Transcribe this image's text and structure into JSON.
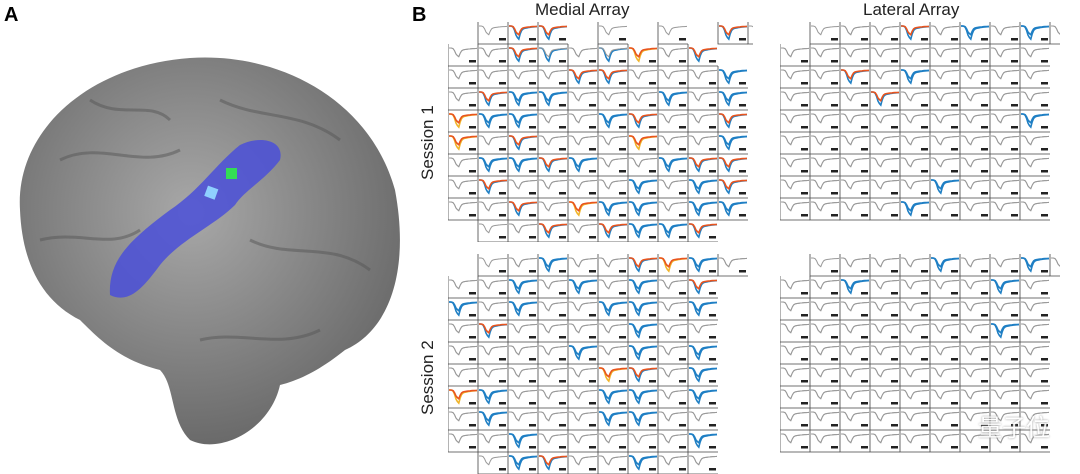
{
  "panel_labels": {
    "a": "A",
    "b": "B"
  },
  "columns": {
    "medial": "Medial Array",
    "lateral": "Lateral Array"
  },
  "rows": {
    "s1": "Session 1",
    "s2": "Session 2"
  },
  "watermark": "量子位",
  "colors": {
    "brain": "#8a8a8a",
    "region": "#4a4fd8",
    "blue": "#1f7fc4",
    "orange": "#e8541e",
    "yellow": "#f0b429",
    "gray": "#999999"
  },
  "grids": {
    "m1": [
      ".g.bo.bo..g..g..bo.g..",
      "gg.gg.bo.bg.gg.bg.yo.gg.bo",
      "gg.gg.gg.gg.bo.bo.gg.gg.gg.bb",
      "gg.bo.bb.bb.gg.gg.gg.bb.gg.bb",
      "yo.bb.bb.gg.gg.bb.bo.gg.gg.bo",
      "yo.gg.bo.gg.gg.gg.yo.gg.gg.bb",
      "gg.bb.bb.bo.bb.gg.gg.bb.bo.bo",
      "gg.bo.gg.gg.gg.gg.bb.gg.bb.bo",
      "gg.gg.bo.gg.yo.bb.bb.gg.bb.bb",
      ".g.gg.bo.gg.bo.bb.bb.bo"
    ],
    "l1": [
      ".g.gg.gg.bo.gg.bb.gg.bb.gg",
      "gg.gg.gg.gg.gg.gg.gg.gg.gg",
      "gg.gg.bo.gg.bb.gg.gg.gg.gg",
      "gg.gg.gg.bo.gg.gg.gg.gg.gg",
      "gg.gg.gg.gg.gg.gg.gg.gg.bb",
      "gg.gg.gg.gg.gg.gg.gg.gg.gg",
      "gg.gg.gg.gg.gg.gg.gg.gg.gg",
      "gg.gg.gg.gg.gg.bb.gg.gg.gg",
      "gg.gg.gg.gg.bb.gg.gg.gg.gg"
    ],
    "m2": [
      ".g.gg.bb.gg.gg.bo.yo.bb.gg",
      "gg.gg.bb.gg.bb.gg.bb.gg.bo",
      "bb.gg.bb.gg.gg.bb.bb.gg.bb",
      "gg.bo.gg.gg.gg.gg.bb.gg.gg",
      "gg.gg.gg.gg.bb.gg.bb.gg.bb",
      "gg.gg.gg.gg.gg.yo.bo.gg.bb",
      "yo.bb.gg.gg.gg.bb.bb.gg.bb",
      "gg.bb.gg.gg.gg.bb.bb.gg.gg",
      "gg.gg.bb.gg.gg.gg.gg.gg.bb",
      ".g.bb.bo.gg.gg.bb.gg.gg"
    ],
    "l2": [
      ".g.gg.gg.gg.bb.gg.gg.bb.gg",
      "gg.gg.bb.gg.gg.gg.gg.bb.gg",
      "gg.gg.gg.gg.gg.gg.gg.gg.gg",
      "gg.gg.gg.gg.gg.gg.gg.bb.gg",
      "gg.gg.gg.gg.gg.gg.gg.gg.gg",
      "gg.gg.gg.gg.gg.gg.gg.gg.gg",
      "gg.gg.gg.gg.gg.gg.gg.gg.gg",
      "gg.gg.gg.gg.gg.gg.gg.gg.gg",
      "gg.gg.gg.gg.gg.gg.gg.gg.gg"
    ]
  }
}
